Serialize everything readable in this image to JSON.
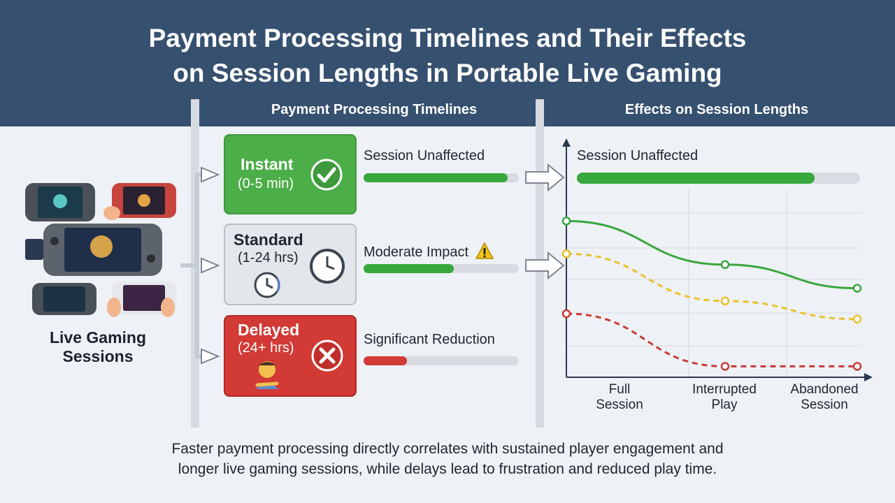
{
  "title": {
    "line1": "Payment Processing Timelines and Their Effects",
    "line2": "on Session Lengths in Portable Live Gaming"
  },
  "columns": {
    "timelines": "Payment Processing Timelines",
    "effects": "Effects on Session Lengths"
  },
  "source": {
    "label_line1": "Live Gaming",
    "label_line2": "Sessions",
    "icon": "handheld-console-icon"
  },
  "tiers": [
    {
      "name": "Instant",
      "duration": "(0-5 min)",
      "icon": "checkmark-icon",
      "status": "Session Unaffected",
      "bar_fraction": 0.93,
      "bar_color": "#37a83c",
      "color": "#4cae48"
    },
    {
      "name": "Standard",
      "duration": "(1-24 hrs)",
      "icon": "clock-icon",
      "status": "Moderate Impact",
      "status_icon": "warning-icon",
      "bar_fraction": 0.58,
      "bar_color": "#37a83c",
      "color": "#e3e6ea"
    },
    {
      "name": "Delayed",
      "duration": "(24+ hrs)",
      "icon": "x-icon",
      "extra_icon": "frustrated-person-icon",
      "status": "Significant Reduction",
      "bar_fraction": 0.28,
      "bar_color": "#d23a35",
      "color": "#d23a35"
    }
  ],
  "effects_panel": {
    "status": "Session Unaffected",
    "bar_fraction": 0.84
  },
  "chart_data": {
    "type": "line",
    "categories": [
      "Full\nSession",
      "Interrupted\nPlay",
      "Abandoned\nSession"
    ],
    "y_range": [
      0,
      100
    ],
    "grid": true,
    "series": [
      {
        "color": "#3aa63e",
        "style": "solid",
        "values": [
          86,
          62,
          49
        ]
      },
      {
        "color": "#e9c12b",
        "style": "dashed",
        "values": [
          68,
          42,
          32
        ]
      },
      {
        "color": "#c93a36",
        "style": "dashed",
        "values": [
          35,
          6,
          6
        ]
      }
    ]
  },
  "footer": {
    "line1": "Faster payment processing directly correlates with sustained player engagement and",
    "line2": "longer live gaming sessions, while delays lead to frustration and reduced play time."
  }
}
